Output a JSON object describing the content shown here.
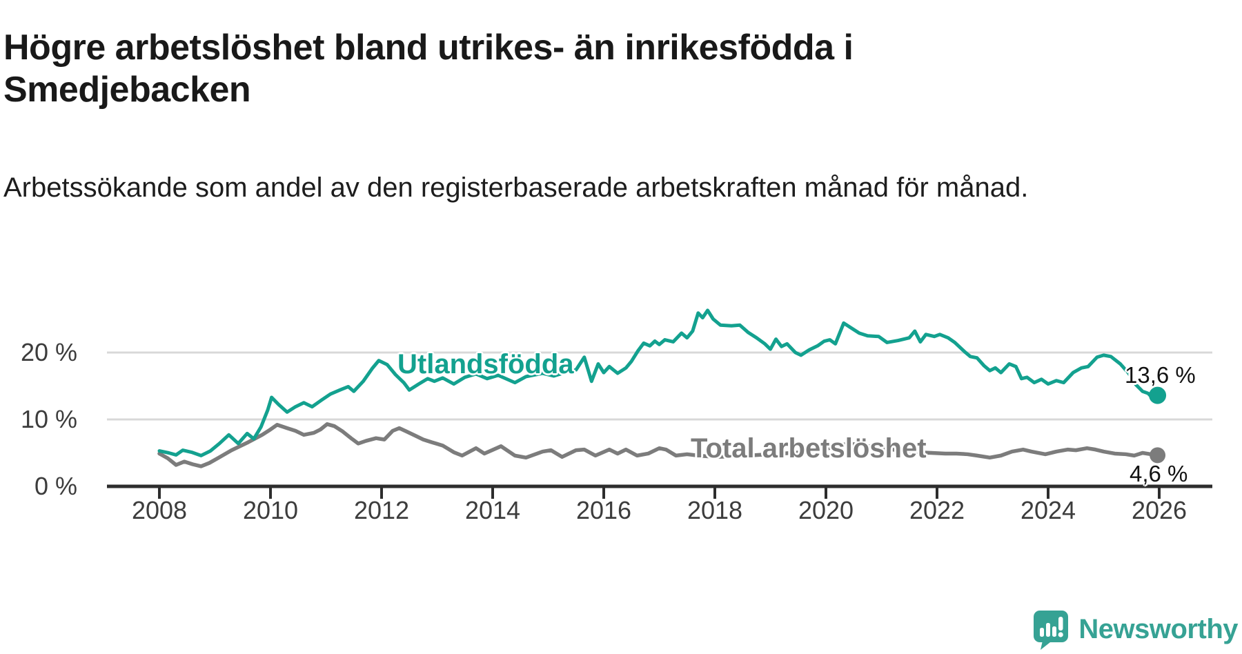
{
  "header": {
    "title": "Högre arbetslöshet bland utrikes- än inrikesfödda i Smedjebacken",
    "subtitle": "Arbetssökande som andel av den registerbaserade arbetskraften månad för månad."
  },
  "footer": {
    "brand": "Newsworthy",
    "logo_icon": "speech-bubble-bar-chart-exclamation",
    "logo_color": "#36a294"
  },
  "colors": {
    "background": "#ffffff",
    "grid": "#d8d8d8",
    "axis": "#2d2d2d",
    "axis_text": "#3c3c3c",
    "value_text": "#121212"
  },
  "chart_data": {
    "type": "line",
    "title": "Högre arbetslöshet bland utrikes- än inrikesfödda i Smedjebacken",
    "subtitle": "Arbetssökande som andel av den registerbaserade arbetskraften månad för månad.",
    "unit": "%",
    "grid": true,
    "legend_position": "inline-labels",
    "x_axis": {
      "range": [
        2008,
        2026.2
      ],
      "ticks": [
        {
          "label": "2008",
          "year": 2008
        },
        {
          "label": "2010",
          "year": 2010
        },
        {
          "label": "2012",
          "year": 2012
        },
        {
          "label": "2014",
          "year": 2014
        },
        {
          "label": "2016",
          "year": 2016
        },
        {
          "label": "2018",
          "year": 2018
        },
        {
          "label": "2020",
          "year": 2020
        },
        {
          "label": "2022",
          "year": 2022
        },
        {
          "label": "2024",
          "year": 2024
        },
        {
          "label": "2026",
          "year": 2026
        }
      ]
    },
    "y_axis": {
      "range": [
        0,
        28
      ],
      "ticks": [
        {
          "label": "20 %",
          "value": 20,
          "gridline": true
        },
        {
          "label": "10 %",
          "value": 10,
          "gridline": true
        },
        {
          "label": "0 %",
          "value": 0,
          "gridline": false
        }
      ]
    },
    "series": [
      {
        "name": "Utlandsfödda",
        "color": "#13a18f",
        "end_label": "13,6 %",
        "end_value": 13.6,
        "points": [
          [
            2008.0,
            5.3
          ],
          [
            2008.17,
            5.0
          ],
          [
            2008.3,
            4.7
          ],
          [
            2008.42,
            5.4
          ],
          [
            2008.58,
            5.1
          ],
          [
            2008.75,
            4.6
          ],
          [
            2008.92,
            5.3
          ],
          [
            2009.08,
            6.4
          ],
          [
            2009.25,
            7.7
          ],
          [
            2009.42,
            6.4
          ],
          [
            2009.58,
            7.9
          ],
          [
            2009.7,
            7.1
          ],
          [
            2009.83,
            8.9
          ],
          [
            2009.95,
            11.4
          ],
          [
            2010.02,
            13.3
          ],
          [
            2010.15,
            12.2
          ],
          [
            2010.3,
            11.1
          ],
          [
            2010.45,
            11.9
          ],
          [
            2010.6,
            12.5
          ],
          [
            2010.75,
            11.9
          ],
          [
            2010.92,
            12.9
          ],
          [
            2011.08,
            13.8
          ],
          [
            2011.25,
            14.4
          ],
          [
            2011.4,
            14.9
          ],
          [
            2011.5,
            14.2
          ],
          [
            2011.67,
            15.7
          ],
          [
            2011.83,
            17.6
          ],
          [
            2011.95,
            18.8
          ],
          [
            2012.1,
            18.2
          ],
          [
            2012.25,
            16.7
          ],
          [
            2012.4,
            15.5
          ],
          [
            2012.5,
            14.4
          ],
          [
            2012.67,
            15.3
          ],
          [
            2012.83,
            16.1
          ],
          [
            2012.95,
            15.7
          ],
          [
            2013.1,
            16.2
          ],
          [
            2013.3,
            15.3
          ],
          [
            2013.5,
            16.3
          ],
          [
            2013.7,
            16.8
          ],
          [
            2013.9,
            16.1
          ],
          [
            2014.1,
            16.6
          ],
          [
            2014.4,
            15.5
          ],
          [
            2014.6,
            16.4
          ],
          [
            2014.9,
            16.9
          ],
          [
            2015.1,
            16.5
          ],
          [
            2015.3,
            17.0
          ],
          [
            2015.5,
            17.4
          ],
          [
            2015.65,
            19.3
          ],
          [
            2015.78,
            15.7
          ],
          [
            2015.9,
            18.3
          ],
          [
            2016.0,
            17.0
          ],
          [
            2016.1,
            17.9
          ],
          [
            2016.25,
            16.9
          ],
          [
            2016.4,
            17.7
          ],
          [
            2016.5,
            18.7
          ],
          [
            2016.62,
            20.3
          ],
          [
            2016.72,
            21.4
          ],
          [
            2016.83,
            21.0
          ],
          [
            2016.92,
            21.7
          ],
          [
            2017.0,
            21.2
          ],
          [
            2017.1,
            21.9
          ],
          [
            2017.25,
            21.6
          ],
          [
            2017.4,
            22.9
          ],
          [
            2017.5,
            22.2
          ],
          [
            2017.6,
            23.2
          ],
          [
            2017.7,
            25.9
          ],
          [
            2017.78,
            25.2
          ],
          [
            2017.87,
            26.3
          ],
          [
            2017.97,
            25.0
          ],
          [
            2018.1,
            24.1
          ],
          [
            2018.3,
            24.0
          ],
          [
            2018.45,
            24.1
          ],
          [
            2018.6,
            23.0
          ],
          [
            2018.75,
            22.2
          ],
          [
            2018.9,
            21.3
          ],
          [
            2019.0,
            20.5
          ],
          [
            2019.1,
            22.0
          ],
          [
            2019.2,
            20.9
          ],
          [
            2019.3,
            21.3
          ],
          [
            2019.45,
            20.0
          ],
          [
            2019.55,
            19.6
          ],
          [
            2019.7,
            20.4
          ],
          [
            2019.85,
            21.0
          ],
          [
            2019.97,
            21.7
          ],
          [
            2020.07,
            21.9
          ],
          [
            2020.17,
            21.3
          ],
          [
            2020.32,
            24.4
          ],
          [
            2020.45,
            23.7
          ],
          [
            2020.6,
            22.9
          ],
          [
            2020.75,
            22.5
          ],
          [
            2020.95,
            22.4
          ],
          [
            2021.1,
            21.5
          ],
          [
            2021.3,
            21.8
          ],
          [
            2021.5,
            22.2
          ],
          [
            2021.6,
            23.2
          ],
          [
            2021.7,
            21.6
          ],
          [
            2021.8,
            22.7
          ],
          [
            2021.95,
            22.4
          ],
          [
            2022.05,
            22.7
          ],
          [
            2022.2,
            22.2
          ],
          [
            2022.32,
            21.5
          ],
          [
            2022.5,
            20.1
          ],
          [
            2022.6,
            19.4
          ],
          [
            2022.72,
            19.2
          ],
          [
            2022.85,
            18.0
          ],
          [
            2022.95,
            17.3
          ],
          [
            2023.05,
            17.7
          ],
          [
            2023.15,
            17.0
          ],
          [
            2023.3,
            18.3
          ],
          [
            2023.42,
            17.9
          ],
          [
            2023.52,
            16.1
          ],
          [
            2023.62,
            16.3
          ],
          [
            2023.75,
            15.5
          ],
          [
            2023.88,
            16.0
          ],
          [
            2024.0,
            15.3
          ],
          [
            2024.15,
            15.8
          ],
          [
            2024.28,
            15.5
          ],
          [
            2024.45,
            17.0
          ],
          [
            2024.6,
            17.7
          ],
          [
            2024.72,
            17.9
          ],
          [
            2024.88,
            19.3
          ],
          [
            2025.0,
            19.6
          ],
          [
            2025.13,
            19.4
          ],
          [
            2025.3,
            18.3
          ],
          [
            2025.45,
            16.9
          ],
          [
            2025.58,
            15.2
          ],
          [
            2025.7,
            14.2
          ],
          [
            2025.8,
            13.9
          ],
          [
            2025.88,
            13.2
          ],
          [
            2025.97,
            13.6
          ]
        ]
      },
      {
        "name": "Total arbetslöshet",
        "color": "#7c7c7c",
        "end_label": "4,6 %",
        "end_value": 4.6,
        "points": [
          [
            2008.0,
            4.9
          ],
          [
            2008.15,
            4.2
          ],
          [
            2008.3,
            3.2
          ],
          [
            2008.45,
            3.7
          ],
          [
            2008.6,
            3.3
          ],
          [
            2008.75,
            3.0
          ],
          [
            2008.9,
            3.5
          ],
          [
            2009.05,
            4.2
          ],
          [
            2009.3,
            5.4
          ],
          [
            2009.6,
            6.6
          ],
          [
            2009.85,
            7.7
          ],
          [
            2010.0,
            8.5
          ],
          [
            2010.12,
            9.2
          ],
          [
            2010.3,
            8.7
          ],
          [
            2010.45,
            8.3
          ],
          [
            2010.6,
            7.7
          ],
          [
            2010.78,
            8.0
          ],
          [
            2010.9,
            8.5
          ],
          [
            2011.02,
            9.3
          ],
          [
            2011.15,
            9.0
          ],
          [
            2011.3,
            8.2
          ],
          [
            2011.45,
            7.2
          ],
          [
            2011.58,
            6.4
          ],
          [
            2011.72,
            6.8
          ],
          [
            2011.9,
            7.2
          ],
          [
            2012.05,
            7.0
          ],
          [
            2012.2,
            8.3
          ],
          [
            2012.32,
            8.7
          ],
          [
            2012.45,
            8.2
          ],
          [
            2012.6,
            7.6
          ],
          [
            2012.75,
            7.0
          ],
          [
            2012.9,
            6.6
          ],
          [
            2013.1,
            6.1
          ],
          [
            2013.3,
            5.1
          ],
          [
            2013.45,
            4.6
          ],
          [
            2013.7,
            5.7
          ],
          [
            2013.85,
            4.9
          ],
          [
            2014.15,
            6.0
          ],
          [
            2014.4,
            4.6
          ],
          [
            2014.6,
            4.3
          ],
          [
            2014.9,
            5.2
          ],
          [
            2015.05,
            5.4
          ],
          [
            2015.25,
            4.4
          ],
          [
            2015.5,
            5.4
          ],
          [
            2015.65,
            5.5
          ],
          [
            2015.85,
            4.6
          ],
          [
            2016.1,
            5.5
          ],
          [
            2016.25,
            4.9
          ],
          [
            2016.4,
            5.5
          ],
          [
            2016.6,
            4.6
          ],
          [
            2016.8,
            4.9
          ],
          [
            2017.0,
            5.7
          ],
          [
            2017.12,
            5.5
          ],
          [
            2017.3,
            4.6
          ],
          [
            2017.5,
            4.8
          ],
          [
            2017.7,
            4.6
          ],
          [
            2018.0,
            4.4
          ],
          [
            2018.4,
            4.5
          ],
          [
            2018.8,
            4.7
          ],
          [
            2019.2,
            4.9
          ],
          [
            2019.6,
            5.1
          ],
          [
            2019.9,
            5.4
          ],
          [
            2020.2,
            6.0
          ],
          [
            2020.4,
            6.4
          ],
          [
            2020.7,
            6.1
          ],
          [
            2021.0,
            5.7
          ],
          [
            2021.3,
            5.4
          ],
          [
            2021.6,
            5.1
          ],
          [
            2021.9,
            5.0
          ],
          [
            2022.15,
            4.9
          ],
          [
            2022.35,
            4.9
          ],
          [
            2022.55,
            4.8
          ],
          [
            2022.72,
            4.6
          ],
          [
            2022.95,
            4.3
          ],
          [
            2023.15,
            4.6
          ],
          [
            2023.35,
            5.2
          ],
          [
            2023.55,
            5.5
          ],
          [
            2023.7,
            5.2
          ],
          [
            2023.95,
            4.8
          ],
          [
            2024.15,
            5.2
          ],
          [
            2024.35,
            5.5
          ],
          [
            2024.5,
            5.4
          ],
          [
            2024.7,
            5.7
          ],
          [
            2024.85,
            5.5
          ],
          [
            2025.0,
            5.2
          ],
          [
            2025.2,
            4.9
          ],
          [
            2025.4,
            4.8
          ],
          [
            2025.55,
            4.6
          ],
          [
            2025.7,
            5.0
          ],
          [
            2025.85,
            4.8
          ],
          [
            2025.97,
            4.65
          ]
        ]
      }
    ]
  }
}
